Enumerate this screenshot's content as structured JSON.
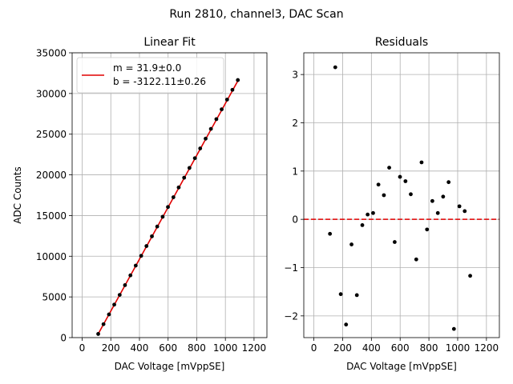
{
  "suptitle": "Run 2810, channel3, DAC Scan",
  "chart_data": [
    {
      "type": "scatter",
      "title": "Linear Fit",
      "xlabel": "DAC Voltage [mVppSE]",
      "ylabel": "ADC Counts",
      "xlim": [
        -70,
        1290
      ],
      "ylim": [
        0,
        35000
      ],
      "xticks": [
        0,
        200,
        400,
        600,
        800,
        1000,
        1200
      ],
      "xtick_labels": [
        "0",
        "200",
        "400",
        "600",
        "800",
        "1000",
        "1200"
      ],
      "yticks": [
        0,
        5000,
        10000,
        15000,
        20000,
        25000,
        30000,
        35000
      ],
      "ytick_labels": [
        "0",
        "5000",
        "10000",
        "15000",
        "20000",
        "25000",
        "30000",
        "35000"
      ],
      "grid": true,
      "legend_position": "top-left",
      "legend": {
        "line1": "m = 31.9±0.0",
        "line2": "b = -3122.11±0.26"
      },
      "fit": {
        "slope": 31.9,
        "intercept": -3122.11,
        "x_range": [
          112,
          1087
        ],
        "color": "#e00000"
      },
      "points_color": "#000000",
      "x": [
        112,
        149,
        187,
        224,
        262,
        299,
        337,
        374,
        412,
        449,
        487,
        524,
        562,
        599,
        637,
        674,
        712,
        749,
        787,
        824,
        862,
        899,
        937,
        974,
        1012,
        1049,
        1087
      ],
      "y": [
        450,
        1650,
        2850,
        4050,
        5250,
        6450,
        7650,
        8850,
        10050,
        11250,
        12450,
        13650,
        14850,
        16050,
        17250,
        18450,
        19650,
        20850,
        22050,
        23250,
        24450,
        25650,
        26850,
        28050,
        29250,
        30450,
        31650
      ]
    },
    {
      "type": "scatter",
      "title": "Residuals",
      "xlabel": "DAC Voltage [mVppSE]",
      "ylabel": "",
      "xlim": [
        -70,
        1290
      ],
      "ylim": [
        -2.45,
        3.45
      ],
      "xticks": [
        0,
        200,
        400,
        600,
        800,
        1000,
        1200
      ],
      "xtick_labels": [
        "0",
        "200",
        "400",
        "600",
        "800",
        "1000",
        "1200"
      ],
      "yticks": [
        -2,
        -1,
        0,
        1,
        2,
        3
      ],
      "ytick_labels": [
        "−2",
        "−1",
        "0",
        "1",
        "2",
        "3"
      ],
      "grid": true,
      "reference_line": {
        "y": 0,
        "style": "dashed",
        "color": "#e00000"
      },
      "points_color": "#000000",
      "x": [
        112,
        149,
        187,
        224,
        262,
        299,
        337,
        374,
        412,
        449,
        487,
        524,
        562,
        599,
        637,
        674,
        712,
        749,
        787,
        824,
        862,
        899,
        937,
        974,
        1012,
        1049,
        1087
      ],
      "y": [
        -0.3,
        3.15,
        -1.55,
        -2.18,
        -0.52,
        -1.57,
        -0.12,
        0.1,
        0.13,
        0.72,
        0.5,
        1.07,
        -0.47,
        0.88,
        0.79,
        0.52,
        -0.83,
        1.18,
        -0.21,
        0.38,
        0.13,
        0.47,
        0.77,
        -2.27,
        0.27,
        0.17,
        -1.17
      ]
    }
  ]
}
